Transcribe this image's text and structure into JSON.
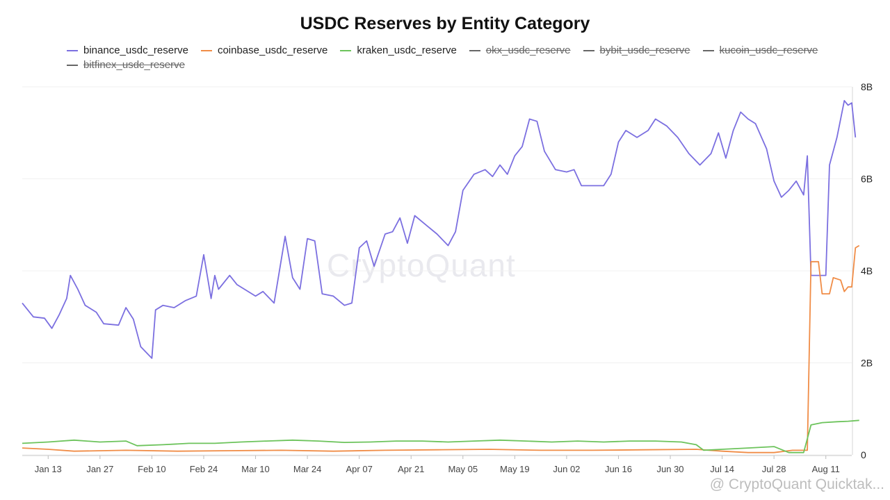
{
  "chart_data": {
    "type": "line",
    "title": "USDC Reserves by Entity Category",
    "watermark": "CryptoQuant",
    "attribution": "@ CryptoQuant Quicktak...",
    "y_ticks": [
      "0",
      "2B",
      "4B",
      "6B",
      "8B"
    ],
    "ylim": [
      0,
      8
    ],
    "y_unit": "B",
    "x_tick_labels": [
      "Jan 13",
      "Jan 27",
      "Feb 10",
      "Feb 24",
      "Mar 10",
      "Mar 24",
      "Apr 07",
      "Apr 21",
      "May 05",
      "May 19",
      "Jun 02",
      "Jun 16",
      "Jun 30",
      "Jul 14",
      "Jul 28",
      "Aug 11"
    ],
    "x_start": "Jan 06",
    "x_end": "Aug 18",
    "grid": true,
    "legend_position": "top",
    "series": [
      {
        "name": "binance_usdc_reserve",
        "color": "#7b6fe0",
        "visible": true,
        "points": [
          [
            "Jan 06",
            3.3
          ],
          [
            "Jan 09",
            3.0
          ],
          [
            "Jan 12",
            2.97
          ],
          [
            "Jan 14",
            2.75
          ],
          [
            "Jan 16",
            3.05
          ],
          [
            "Jan 18",
            3.4
          ],
          [
            "Jan 19",
            3.9
          ],
          [
            "Jan 21",
            3.6
          ],
          [
            "Jan 23",
            3.25
          ],
          [
            "Jan 26",
            3.1
          ],
          [
            "Jan 28",
            2.85
          ],
          [
            "Feb 01",
            2.82
          ],
          [
            "Feb 03",
            3.2
          ],
          [
            "Feb 05",
            2.95
          ],
          [
            "Feb 07",
            2.35
          ],
          [
            "Feb 10",
            2.1
          ],
          [
            "Feb 11",
            3.15
          ],
          [
            "Feb 13",
            3.25
          ],
          [
            "Feb 16",
            3.2
          ],
          [
            "Feb 19",
            3.35
          ],
          [
            "Feb 22",
            3.45
          ],
          [
            "Feb 24",
            4.35
          ],
          [
            "Feb 26",
            3.4
          ],
          [
            "Feb 27",
            3.9
          ],
          [
            "Feb 28",
            3.6
          ],
          [
            "Mar 03",
            3.9
          ],
          [
            "Mar 05",
            3.7
          ],
          [
            "Mar 07",
            3.6
          ],
          [
            "Mar 10",
            3.45
          ],
          [
            "Mar 12",
            3.55
          ],
          [
            "Mar 15",
            3.3
          ],
          [
            "Mar 18",
            4.75
          ],
          [
            "Mar 20",
            3.85
          ],
          [
            "Mar 22",
            3.6
          ],
          [
            "Mar 24",
            4.7
          ],
          [
            "Mar 26",
            4.65
          ],
          [
            "Mar 28",
            3.5
          ],
          [
            "Mar 31",
            3.45
          ],
          [
            "Apr 03",
            3.25
          ],
          [
            "Apr 05",
            3.3
          ],
          [
            "Apr 07",
            4.5
          ],
          [
            "Apr 09",
            4.65
          ],
          [
            "Apr 11",
            4.1
          ],
          [
            "Apr 14",
            4.8
          ],
          [
            "Apr 16",
            4.85
          ],
          [
            "Apr 18",
            5.15
          ],
          [
            "Apr 20",
            4.6
          ],
          [
            "Apr 22",
            5.2
          ],
          [
            "Apr 25",
            5.0
          ],
          [
            "Apr 28",
            4.8
          ],
          [
            "May 01",
            4.55
          ],
          [
            "May 03",
            4.85
          ],
          [
            "May 05",
            5.75
          ],
          [
            "May 08",
            6.1
          ],
          [
            "May 11",
            6.2
          ],
          [
            "May 13",
            6.05
          ],
          [
            "May 15",
            6.3
          ],
          [
            "May 17",
            6.1
          ],
          [
            "May 19",
            6.5
          ],
          [
            "May 21",
            6.7
          ],
          [
            "May 23",
            7.3
          ],
          [
            "May 25",
            7.25
          ],
          [
            "May 27",
            6.6
          ],
          [
            "May 30",
            6.2
          ],
          [
            "Jun 02",
            6.15
          ],
          [
            "Jun 04",
            6.2
          ],
          [
            "Jun 06",
            5.85
          ],
          [
            "Jun 09",
            5.85
          ],
          [
            "Jun 12",
            5.85
          ],
          [
            "Jun 14",
            6.1
          ],
          [
            "Jun 16",
            6.8
          ],
          [
            "Jun 18",
            7.05
          ],
          [
            "Jun 21",
            6.9
          ],
          [
            "Jun 24",
            7.05
          ],
          [
            "Jun 26",
            7.3
          ],
          [
            "Jun 29",
            7.15
          ],
          [
            "Jul 02",
            6.9
          ],
          [
            "Jul 05",
            6.55
          ],
          [
            "Jul 08",
            6.3
          ],
          [
            "Jul 11",
            6.55
          ],
          [
            "Jul 13",
            7.0
          ],
          [
            "Jul 15",
            6.45
          ],
          [
            "Jul 17",
            7.05
          ],
          [
            "Jul 19",
            7.45
          ],
          [
            "Jul 21",
            7.3
          ],
          [
            "Jul 23",
            7.2
          ],
          [
            "Jul 26",
            6.65
          ],
          [
            "Jul 28",
            5.95
          ],
          [
            "Jul 30",
            5.6
          ],
          [
            "Aug 01",
            5.75
          ],
          [
            "Aug 03",
            5.95
          ],
          [
            "Aug 05",
            5.65
          ],
          [
            "Aug 06",
            6.5
          ],
          [
            "Aug 07",
            3.9
          ],
          [
            "Aug 11",
            3.9
          ],
          [
            "Aug 12",
            6.3
          ],
          [
            "Aug 14",
            6.9
          ],
          [
            "Aug 16",
            7.7
          ],
          [
            "Aug 17",
            7.6
          ],
          [
            "Aug 18",
            7.65
          ],
          [
            "Aug 19",
            6.9
          ]
        ]
      },
      {
        "name": "coinbase_usdc_reserve",
        "color": "#f08c46",
        "visible": true,
        "points": [
          [
            "Jan 06",
            0.15
          ],
          [
            "Jan 13",
            0.12
          ],
          [
            "Jan 20",
            0.08
          ],
          [
            "Feb 03",
            0.1
          ],
          [
            "Feb 17",
            0.08
          ],
          [
            "Mar 03",
            0.09
          ],
          [
            "Mar 17",
            0.1
          ],
          [
            "Mar 31",
            0.08
          ],
          [
            "Apr 14",
            0.1
          ],
          [
            "Apr 28",
            0.11
          ],
          [
            "May 12",
            0.12
          ],
          [
            "May 26",
            0.1
          ],
          [
            "Jun 09",
            0.1
          ],
          [
            "Jun 23",
            0.11
          ],
          [
            "Jul 07",
            0.12
          ],
          [
            "Jul 14",
            0.08
          ],
          [
            "Jul 21",
            0.05
          ],
          [
            "Jul 28",
            0.05
          ],
          [
            "Aug 02",
            0.1
          ],
          [
            "Aug 06",
            0.1
          ],
          [
            "Aug 07",
            4.2
          ],
          [
            "Aug 09",
            4.2
          ],
          [
            "Aug 10",
            3.5
          ],
          [
            "Aug 12",
            3.5
          ],
          [
            "Aug 13",
            3.85
          ],
          [
            "Aug 15",
            3.8
          ],
          [
            "Aug 16",
            3.55
          ],
          [
            "Aug 17",
            3.65
          ],
          [
            "Aug 18",
            3.65
          ],
          [
            "Aug 19",
            4.5
          ],
          [
            "Aug 20",
            4.55
          ]
        ]
      },
      {
        "name": "kraken_usdc_reserve",
        "color": "#6cc35b",
        "visible": true,
        "points": [
          [
            "Jan 06",
            0.25
          ],
          [
            "Jan 13",
            0.28
          ],
          [
            "Jan 20",
            0.32
          ],
          [
            "Jan 27",
            0.28
          ],
          [
            "Feb 03",
            0.3
          ],
          [
            "Feb 06",
            0.2
          ],
          [
            "Feb 13",
            0.22
          ],
          [
            "Feb 20",
            0.25
          ],
          [
            "Feb 27",
            0.25
          ],
          [
            "Mar 06",
            0.28
          ],
          [
            "Mar 13",
            0.3
          ],
          [
            "Mar 20",
            0.32
          ],
          [
            "Mar 27",
            0.3
          ],
          [
            "Apr 03",
            0.27
          ],
          [
            "Apr 10",
            0.28
          ],
          [
            "Apr 17",
            0.3
          ],
          [
            "Apr 24",
            0.3
          ],
          [
            "May 01",
            0.28
          ],
          [
            "May 08",
            0.3
          ],
          [
            "May 15",
            0.32
          ],
          [
            "May 22",
            0.3
          ],
          [
            "May 29",
            0.28
          ],
          [
            "Jun 05",
            0.3
          ],
          [
            "Jun 12",
            0.28
          ],
          [
            "Jun 19",
            0.3
          ],
          [
            "Jun 26",
            0.3
          ],
          [
            "Jul 03",
            0.28
          ],
          [
            "Jul 07",
            0.22
          ],
          [
            "Jul 09",
            0.1
          ],
          [
            "Jul 14",
            0.12
          ],
          [
            "Jul 21",
            0.15
          ],
          [
            "Jul 28",
            0.18
          ],
          [
            "Aug 01",
            0.05
          ],
          [
            "Aug 05",
            0.05
          ],
          [
            "Aug 07",
            0.65
          ],
          [
            "Aug 10",
            0.7
          ],
          [
            "Aug 14",
            0.72
          ],
          [
            "Aug 17",
            0.73
          ],
          [
            "Aug 20",
            0.75
          ]
        ]
      },
      {
        "name": "okx_usdc_reserve",
        "color": "#666666",
        "visible": false,
        "points": []
      },
      {
        "name": "bybit_usdc_reserve",
        "color": "#666666",
        "visible": false,
        "points": []
      },
      {
        "name": "kucoin_usdc_reserve",
        "color": "#666666",
        "visible": false,
        "points": []
      },
      {
        "name": "bitfinex_usdc_reserve",
        "color": "#666666",
        "visible": false,
        "points": []
      }
    ]
  }
}
